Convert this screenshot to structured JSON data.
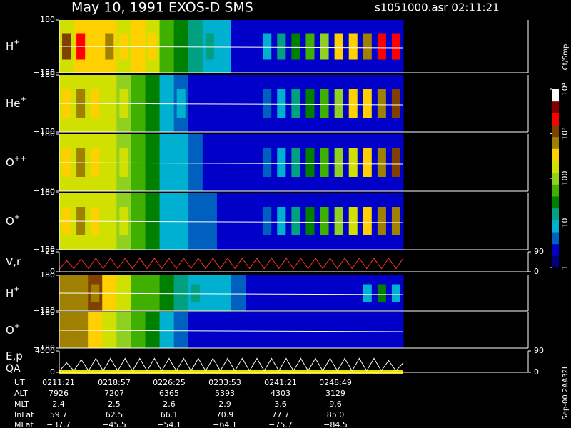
{
  "header": {
    "title": "May 10, 1991   EXOS-D SMS",
    "file": "s1051000.asr  02:11:21",
    "side": "Sep-00 2AA32L"
  },
  "colorbar": {
    "label": "Ct/Smp",
    "clim": [
      0,
      4
    ],
    "colors": [
      "#00007f",
      "#0000c8",
      "#0060c0",
      "#00b0d0",
      "#00a080",
      "#008000",
      "#40b000",
      "#90d020",
      "#d0e000",
      "#ffd000",
      "#a08000",
      "#804000",
      "#ff0000",
      "#800000",
      "#ffffff"
    ],
    "ticks": [
      {
        "value": 4,
        "label": "10⁴"
      },
      {
        "value": 3,
        "label": "10³"
      },
      {
        "value": 2,
        "label": "100"
      },
      {
        "value": 1,
        "label": "10"
      },
      {
        "value": 0,
        "label": "1"
      }
    ]
  },
  "chart_data": [
    {
      "type": "heatmap",
      "label": {
        "base": "H",
        "sup": "+"
      },
      "ylim": [
        -180,
        180
      ],
      "yticks": [
        180,
        {
          "value": -180,
          "label": "−180"
        }
      ],
      "values": [
        2.3,
        2.6,
        2.4,
        2.6,
        2.2,
        2.4,
        2.3,
        1.6,
        1.4,
        1.1,
        1.0,
        1.0,
        0.3,
        0.3,
        0.3,
        0.3,
        0.3,
        0.3,
        0.3,
        0.3,
        0.3,
        0.3,
        0.3,
        0.3
      ],
      "core": [
        3.0,
        3.2,
        2.6,
        2.8,
        2.5,
        2.6,
        2.4,
        1.8,
        1.5,
        1.2,
        1.1,
        1.0,
        0.3,
        0.3,
        0.9,
        1.2,
        1.5,
        1.8,
        2.1,
        2.4,
        2.6,
        2.8,
        3.2,
        3.4
      ]
    },
    {
      "type": "heatmap",
      "label": {
        "base": "He",
        "sup": "+"
      },
      "ylim": [
        -180,
        180
      ],
      "yticks": [
        180,
        {
          "value": -180,
          "label": "−180"
        }
      ],
      "values": [
        2.2,
        2.3,
        2.2,
        2.2,
        2.1,
        1.6,
        1.5,
        0.9,
        0.7,
        0.5,
        0.4,
        0.3,
        0.3,
        0.3,
        0.3,
        0.3,
        0.3,
        0.3,
        0.3,
        0.3,
        0.3,
        0.3,
        0.3,
        0.3
      ],
      "core": [
        2.6,
        2.8,
        2.4,
        2.3,
        2.2,
        1.7,
        1.5,
        1.0,
        0.8,
        0.5,
        0.4,
        0.3,
        0.3,
        0.3,
        0.6,
        0.9,
        1.2,
        1.5,
        1.8,
        2.1,
        2.4,
        2.6,
        2.9,
        3.0
      ]
    },
    {
      "type": "heatmap",
      "label": {
        "base": "O",
        "sup": "++"
      },
      "ylim": [
        -180,
        180
      ],
      "yticks": [
        180,
        {
          "value": -180,
          "label": "−180"
        }
      ],
      "values": [
        2.2,
        2.3,
        2.2,
        2.2,
        2.1,
        1.6,
        1.5,
        1.0,
        0.8,
        0.6,
        0.4,
        0.3,
        0.3,
        0.3,
        0.3,
        0.3,
        0.3,
        0.3,
        0.3,
        0.3,
        0.3,
        0.3,
        0.3,
        0.3
      ],
      "core": [
        2.5,
        2.7,
        2.4,
        2.3,
        2.2,
        1.7,
        1.5,
        1.0,
        0.8,
        0.6,
        0.4,
        0.3,
        0.3,
        0.3,
        0.6,
        0.9,
        1.2,
        1.5,
        1.8,
        2.1,
        2.3,
        2.6,
        2.8,
        3.0
      ]
    },
    {
      "type": "heatmap",
      "label": {
        "base": "O",
        "sup": "+"
      },
      "ylim": [
        -180,
        180
      ],
      "yticks": [
        180,
        {
          "value": -180,
          "label": "−180"
        }
      ],
      "values": [
        2.2,
        2.3,
        2.2,
        2.2,
        2.1,
        1.6,
        1.5,
        1.0,
        0.8,
        0.7,
        0.6,
        0.3,
        0.3,
        0.3,
        0.3,
        0.3,
        0.3,
        0.3,
        0.3,
        0.3,
        0.3,
        0.3,
        0.3,
        0.3
      ],
      "core": [
        2.5,
        2.7,
        2.4,
        2.3,
        2.2,
        1.7,
        1.5,
        1.0,
        0.8,
        0.7,
        0.6,
        0.3,
        0.3,
        0.3,
        0.6,
        0.9,
        1.2,
        1.5,
        1.8,
        2.1,
        2.3,
        2.6,
        2.8,
        2.9
      ]
    },
    {
      "type": "line",
      "label": {
        "base": "V,r"
      },
      "color": "#ff3030",
      "ylim": [
        0,
        25
      ],
      "yticks": [
        25,
        0
      ],
      "y2lim": [
        0,
        90
      ],
      "y2ticks": [
        90,
        0
      ],
      "values": [
        3,
        14,
        4,
        16,
        4,
        17,
        4,
        17,
        4,
        17,
        4,
        17,
        4,
        17,
        4,
        17,
        4,
        17,
        4,
        17,
        4,
        17,
        4,
        17,
        4,
        17,
        4,
        17,
        4,
        17,
        4,
        17,
        4,
        17,
        4,
        17,
        4,
        17,
        4,
        17,
        4,
        17,
        4,
        17,
        4,
        17,
        4,
        17
      ]
    },
    {
      "type": "heatmap",
      "label": {
        "base": "H",
        "sup": "+"
      },
      "ylim": [
        -180,
        180
      ],
      "yticks": [
        180,
        {
          "value": -180,
          "label": "−180"
        }
      ],
      "values": [
        2.8,
        2.9,
        3.0,
        2.6,
        2.2,
        1.8,
        1.6,
        1.4,
        1.2,
        1.0,
        0.9,
        0.8,
        0.6,
        0.4,
        0.3,
        0.3,
        0.3,
        0.3,
        0.3,
        0.3,
        0.3,
        0.3,
        0.3,
        0.3
      ],
      "core": [
        2.7,
        2.8,
        2.9,
        2.6,
        2.2,
        1.7,
        1.6,
        1.4,
        1.3,
        1.1,
        1.0,
        0.9,
        0.7,
        0.5,
        0.3,
        0.3,
        0.3,
        0.3,
        0.3,
        0.3,
        0.3,
        0.9,
        1.4,
        1.0
      ]
    },
    {
      "type": "heatmap",
      "label": {
        "base": "O",
        "sup": "+"
      },
      "ylim": [
        -180,
        180
      ],
      "yticks": [
        180,
        {
          "value": -180,
          "label": "−180"
        }
      ],
      "values": [
        2.8,
        2.9,
        2.6,
        2.2,
        2.0,
        1.8,
        1.5,
        1.0,
        0.6,
        0.3,
        0.3,
        0.3,
        0.3,
        0.3,
        0.3,
        0.3,
        0.3,
        0.3,
        0.3,
        0.3,
        0.3,
        0.3,
        0.3,
        0.3
      ],
      "core": [
        2.7,
        2.8,
        2.5,
        2.2,
        1.9,
        1.7,
        1.4,
        1.0,
        0.7,
        0.3,
        0.3,
        0.3,
        0.3,
        0.3,
        0.3,
        0.3,
        0.3,
        0.3,
        0.3,
        0.3,
        0.3,
        0.3,
        0.3,
        0.3
      ]
    },
    {
      "type": "line",
      "label": {
        "base": "E,p",
        "extra": "QA"
      },
      "color": "#ffffff",
      "ylim": [
        0,
        4000
      ],
      "yticks": [
        4000,
        0
      ],
      "y2lim": [
        0,
        90
      ],
      "y2ticks": [
        90,
        0
      ],
      "values": [
        200,
        1800,
        300,
        2400,
        300,
        2600,
        300,
        2600,
        300,
        2600,
        300,
        2600,
        300,
        2600,
        300,
        2600,
        300,
        2600,
        300,
        2600,
        300,
        2600,
        300,
        2600,
        300,
        2600,
        300,
        2600,
        300,
        2600,
        300,
        2600,
        300,
        2600,
        300,
        2600,
        300,
        2600,
        300,
        2600,
        300,
        2600,
        300,
        2600,
        300,
        2200,
        300,
        1800
      ]
    }
  ],
  "table": {
    "rows": [
      [
        "UT",
        "0211:21",
        "0218:57",
        "0226:25",
        "0233:53",
        "0241:21",
        "0248:49"
      ],
      [
        "ALT",
        "7926",
        "7207",
        "6365",
        "5393",
        "4303",
        "3129"
      ],
      [
        "MLT",
        "2.4",
        "2.5",
        "2.6",
        "2.9",
        "3.6",
        "9.6"
      ],
      [
        "InLat",
        "59.7",
        "62.5",
        "66.1",
        "70.9",
        "77.7",
        "85.0"
      ],
      [
        "MLat",
        "−37.7",
        "−45.5",
        "−54.1",
        "−64.1",
        "−75.7",
        "−84.5"
      ]
    ]
  }
}
